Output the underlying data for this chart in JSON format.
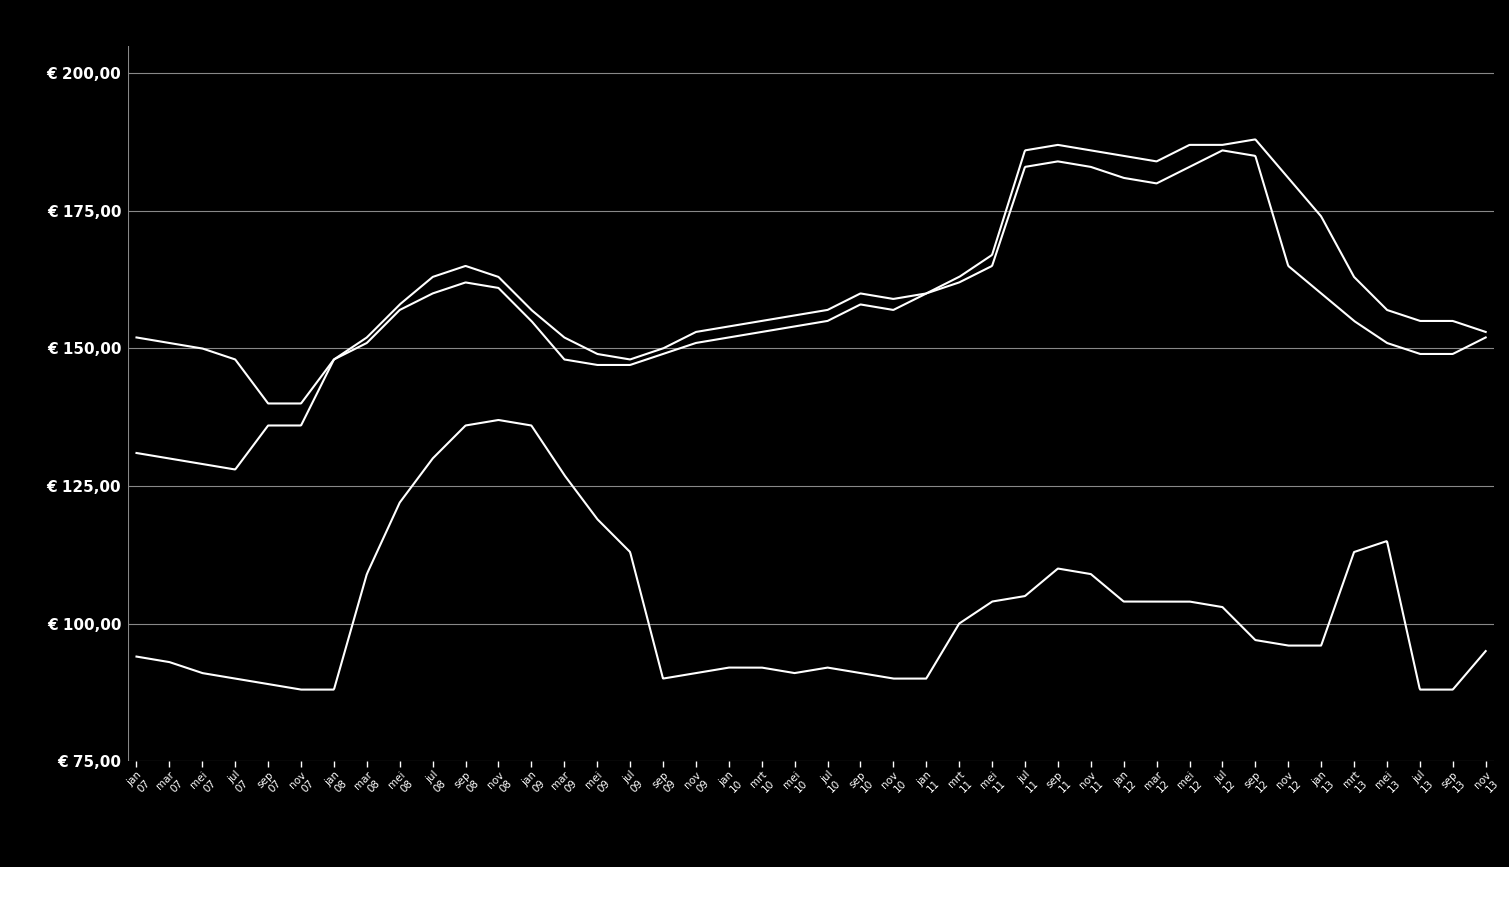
{
  "background_color": "#000000",
  "line_color": "#ffffff",
  "grid_color": "#888888",
  "text_color": "#ffffff",
  "ylim": [
    75,
    205
  ],
  "yticks": [
    75,
    100,
    125,
    150,
    175,
    200
  ],
  "ytick_labels": [
    "€ 75,00",
    "€ 100,00",
    "€ 125,00",
    "€ 150,00",
    "€ 175,00",
    "€ 200,00"
  ],
  "x_tick_labels": [
    "jan",
    "mar",
    "mei",
    "jul",
    "sep",
    "nov",
    "jan",
    "mar",
    "mei",
    "jul",
    "sep",
    "nov",
    "jan",
    "mar",
    "mei",
    "jul",
    "sep",
    "nov",
    "jan",
    "mrt",
    "mei",
    "jul",
    "sep",
    "nov",
    "jan",
    "mrt",
    "mei",
    "jul",
    "sep",
    "nov",
    "jan",
    "mar",
    "mei",
    "jul",
    "sep",
    "nov",
    "jan",
    "mrt",
    "mei",
    "jul",
    "sep",
    "nov"
  ],
  "x_year_labels": [
    "07",
    "07",
    "07",
    "07",
    "07",
    "07",
    "08",
    "08",
    "08",
    "08",
    "08",
    "08",
    "09",
    "09",
    "09",
    "09",
    "09",
    "09",
    "10",
    "10",
    "10",
    "10",
    "10",
    "10",
    "11",
    "11",
    "11",
    "11",
    "11",
    "11",
    "12",
    "12",
    "12",
    "12",
    "12",
    "12",
    "13",
    "13",
    "13",
    "13",
    "13",
    "13"
  ],
  "line1_y": [
    152,
    151,
    150,
    148,
    140,
    140,
    148,
    152,
    158,
    163,
    165,
    163,
    157,
    152,
    149,
    148,
    150,
    153,
    154,
    155,
    156,
    157,
    160,
    159,
    160,
    163,
    167,
    186,
    187,
    186,
    185,
    184,
    187,
    187,
    188,
    181,
    174,
    163,
    157,
    155,
    155,
    153
  ],
  "line2_y": [
    131,
    130,
    129,
    128,
    136,
    136,
    148,
    151,
    157,
    160,
    162,
    161,
    155,
    148,
    147,
    147,
    149,
    151,
    152,
    153,
    154,
    155,
    158,
    157,
    160,
    162,
    165,
    183,
    184,
    183,
    181,
    180,
    183,
    186,
    185,
    165,
    160,
    155,
    151,
    149,
    149,
    152
  ],
  "line3_y": [
    94,
    93,
    91,
    90,
    89,
    88,
    88,
    109,
    122,
    130,
    136,
    137,
    136,
    127,
    119,
    113,
    90,
    91,
    92,
    92,
    91,
    92,
    91,
    90,
    90,
    100,
    104,
    105,
    110,
    109,
    104,
    104,
    104,
    103,
    97,
    96,
    96,
    113,
    115,
    88,
    88,
    95
  ]
}
